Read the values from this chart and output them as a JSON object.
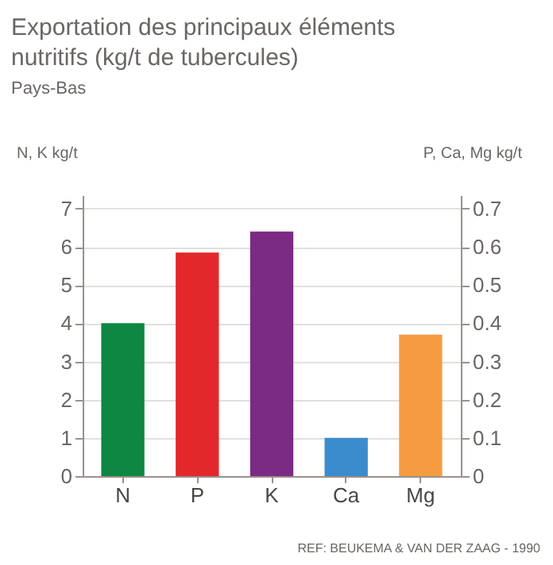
{
  "chart_data": {
    "type": "bar",
    "title": "Exportation des principaux éléments nutritifs (kg/t de tubercules)",
    "subtitle": "Pays-Bas",
    "ylabel": "N, K kg/t",
    "y2label": "P, Ca, Mg kg/t",
    "categories": [
      "N",
      "P",
      "K",
      "Ca",
      "Mg"
    ],
    "series": [
      {
        "color": "#0e8743",
        "values": [
          4.0,
          null,
          null,
          null,
          null
        ]
      },
      {
        "color": "#e2282a",
        "axis": "y2",
        "values": [
          null,
          0.585,
          null,
          null,
          null
        ]
      },
      {
        "color": "#7c2b84",
        "values": [
          null,
          null,
          6.4,
          null,
          null
        ]
      },
      {
        "color": "#3a8ccc",
        "axis": "y2",
        "values": [
          null,
          null,
          null,
          0.1,
          null
        ]
      },
      {
        "color": "#f59c42",
        "axis": "y2",
        "values": [
          null,
          null,
          null,
          null,
          0.37
        ]
      }
    ],
    "ylim": [
      0,
      7.35
    ],
    "yticks": [
      0,
      1,
      2,
      3,
      4,
      5,
      6,
      7
    ],
    "y2lim": [
      0,
      0.735
    ],
    "y2ticks": [
      0,
      0.1,
      0.2,
      0.3,
      0.4,
      0.5,
      0.6,
      0.7
    ],
    "grid": "y",
    "legend": false,
    "annotations": [
      "REF: BEUKEMA & VAN DER ZAAG - 1990"
    ]
  }
}
